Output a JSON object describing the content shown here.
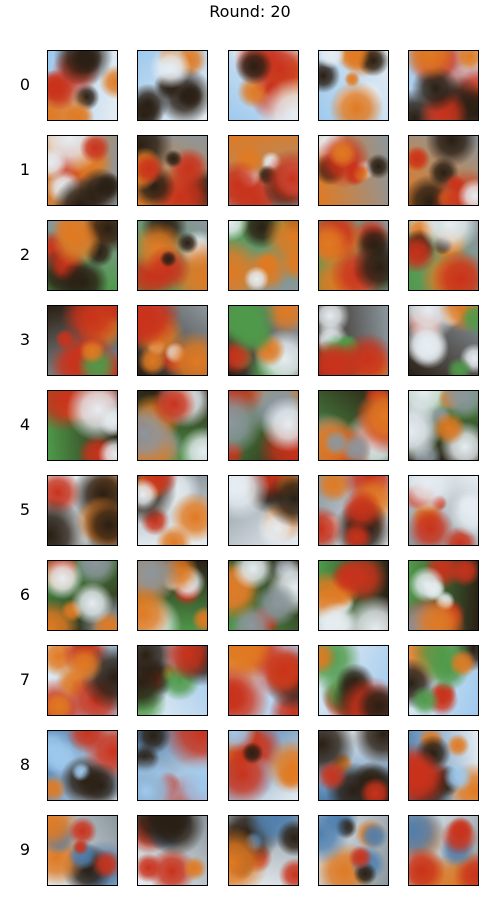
{
  "figure": {
    "title": "Round: 20",
    "row_labels": [
      "0",
      "1",
      "2",
      "3",
      "4",
      "5",
      "6",
      "7",
      "8",
      "9"
    ],
    "columns_per_row": 5
  },
  "palette": {
    "sky": "#9ec9ee",
    "cloud": "#e6edf2",
    "grass": "#4f9a4a",
    "fire": "#e07a22",
    "red": "#c9321b",
    "dark": "#2a1f14",
    "sea": "#4f7fae",
    "grey": "#8c979e"
  },
  "rows": [
    {
      "theme": "sky-orange-blobs"
    },
    {
      "theme": "orange-red-grey"
    },
    {
      "theme": "green-orange"
    },
    {
      "theme": "dark-orange-grey"
    },
    {
      "theme": "green-orange-dark"
    },
    {
      "theme": "grey-orange-white"
    },
    {
      "theme": "green-orange-dark"
    },
    {
      "theme": "sky-orange-red"
    },
    {
      "theme": "sea-orange"
    },
    {
      "theme": "white-red-dark"
    }
  ]
}
